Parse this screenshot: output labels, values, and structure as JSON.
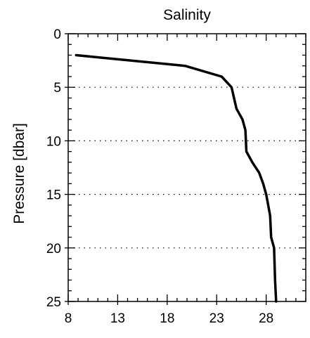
{
  "chart_data": {
    "type": "line",
    "title": "Salinity",
    "xlabel": "",
    "ylabel": "Pressure [dbar]",
    "xlim": [
      8,
      32
    ],
    "ylim": [
      0,
      25
    ],
    "y_inverted": true,
    "x_ticks": [
      8,
      13,
      18,
      23,
      28
    ],
    "y_ticks": [
      0,
      5,
      10,
      15,
      20,
      25
    ],
    "x_minor_step": 1,
    "y_minor_step": 1,
    "grid": "horizontal dotted",
    "series": [
      {
        "color": "#000000",
        "points": [
          {
            "salinity": 8.8,
            "pressure": 2
          },
          {
            "salinity": 19.8,
            "pressure": 3
          },
          {
            "salinity": 23.5,
            "pressure": 4
          },
          {
            "salinity": 24.5,
            "pressure": 5
          },
          {
            "salinity": 25.0,
            "pressure": 7
          },
          {
            "salinity": 25.6,
            "pressure": 8
          },
          {
            "salinity": 25.9,
            "pressure": 9
          },
          {
            "salinity": 26.0,
            "pressure": 11
          },
          {
            "salinity": 26.6,
            "pressure": 12
          },
          {
            "salinity": 27.3,
            "pressure": 13
          },
          {
            "salinity": 27.7,
            "pressure": 14
          },
          {
            "salinity": 28.0,
            "pressure": 15
          },
          {
            "salinity": 28.2,
            "pressure": 16
          },
          {
            "salinity": 28.4,
            "pressure": 17
          },
          {
            "salinity": 28.5,
            "pressure": 19
          },
          {
            "salinity": 28.8,
            "pressure": 20
          },
          {
            "salinity": 28.9,
            "pressure": 23
          },
          {
            "salinity": 29.0,
            "pressure": 25
          }
        ]
      }
    ]
  }
}
